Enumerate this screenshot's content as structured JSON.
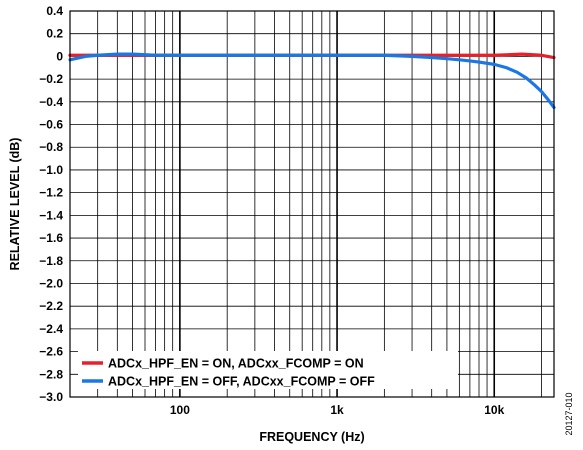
{
  "chart_data": {
    "type": "line",
    "title": "",
    "xlabel": "FREQUENCY (Hz)",
    "ylabel": "RELATIVE LEVEL (dB)",
    "x_scale": "log",
    "xlim": [
      20,
      24000
    ],
    "ylim": [
      -3.0,
      0.4
    ],
    "x_ticks": [
      {
        "value": 100,
        "label": "100"
      },
      {
        "value": 1000,
        "label": "1k"
      },
      {
        "value": 10000,
        "label": "10k"
      }
    ],
    "y_ticks": [
      "0.4",
      "0.2",
      "0",
      "−0.2",
      "−0.4",
      "−0.6",
      "−0.8",
      "−1.0",
      "−1.2",
      "−1.4",
      "−1.6",
      "−1.8",
      "−2.0",
      "−2.2",
      "−2.4",
      "−2.6",
      "−2.8",
      "−3.0"
    ],
    "grid": true,
    "legend_position": "bottom-left",
    "series": [
      {
        "name": "ADCx_HPF_EN = ON, ADCxx_FCOMP = ON",
        "color": "#e8202a",
        "x": [
          20,
          30,
          50,
          100,
          200,
          500,
          1000,
          2000,
          5000,
          10000,
          15000,
          20000,
          24000
        ],
        "y": [
          0.01,
          0.01,
          0.01,
          0.01,
          0.01,
          0.01,
          0.01,
          0.01,
          0.01,
          0.01,
          0.02,
          0.01,
          -0.01
        ]
      },
      {
        "name": "ADCx_HPF_EN = OFF, ADCxx_FCOMP = OFF",
        "color": "#1a78e6",
        "x": [
          20,
          25,
          30,
          40,
          50,
          70,
          100,
          200,
          500,
          1000,
          2000,
          3000,
          4000,
          5000,
          6000,
          7000,
          8000,
          10000,
          12000,
          14000,
          16000,
          18000,
          20000,
          22000,
          24000
        ],
        "y": [
          -0.03,
          0.0,
          0.01,
          0.02,
          0.02,
          0.01,
          0.01,
          0.01,
          0.01,
          0.01,
          0.01,
          0.0,
          -0.01,
          -0.02,
          -0.03,
          -0.04,
          -0.05,
          -0.07,
          -0.1,
          -0.14,
          -0.19,
          -0.25,
          -0.31,
          -0.38,
          -0.45
        ]
      }
    ]
  },
  "figure_id": "20127-010"
}
